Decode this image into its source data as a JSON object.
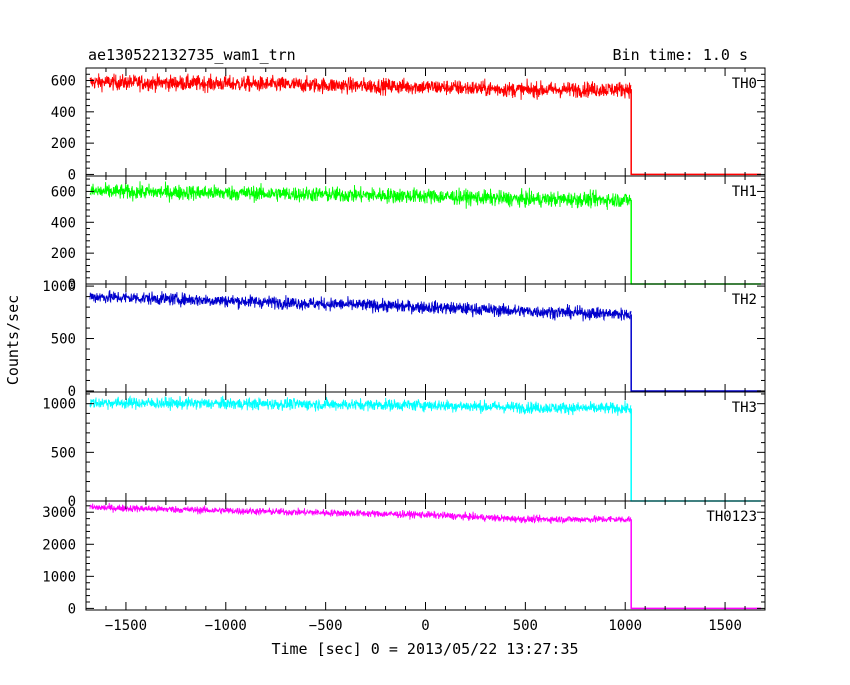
{
  "chart_data": {
    "type": "line",
    "title": "ae130522132735_wam1_trn",
    "subtitle": "Bin time: 1.0 s",
    "xlabel": "Time [sec] 0 = 2013/05/22 13:27:35",
    "ylabel": "Counts/sec",
    "xlim": [
      -1700,
      1700
    ],
    "x_ticks": [
      -1500,
      -1000,
      -500,
      0,
      500,
      1000,
      1500
    ],
    "x_tick_labels": [
      "−1500",
      "−1000",
      "−500",
      "0",
      "500",
      "1000",
      "1500"
    ],
    "data_start": -1680,
    "data_end": 1030,
    "noise_note": "",
    "panels": [
      {
        "name": "TH0",
        "color": "#ff0000",
        "ylim": [
          -10,
          680
        ],
        "y_ticks": [
          0,
          200,
          400,
          600
        ],
        "y_tick_labels": [
          "0",
          "200",
          "400",
          "600"
        ],
        "trend_x": [
          -1680,
          -1000,
          0,
          500,
          1030
        ],
        "trend_y": [
          590,
          580,
          560,
          540,
          545
        ],
        "noise": 25
      },
      {
        "name": "TH1",
        "color": "#00ff00",
        "ylim": [
          0,
          700
        ],
        "y_ticks": [
          0,
          200,
          400,
          600
        ],
        "y_tick_labels": [
          "0",
          "200",
          "400",
          "600"
        ],
        "trend_x": [
          -1680,
          -1000,
          0,
          500,
          1030
        ],
        "trend_y": [
          600,
          590,
          570,
          550,
          545
        ],
        "noise": 25
      },
      {
        "name": "TH2",
        "color": "#0000cd",
        "ylim": [
          -10,
          1020
        ],
        "y_ticks": [
          0,
          500,
          1000
        ],
        "y_tick_labels": [
          "0",
          "500",
          "1000"
        ],
        "trend_x": [
          -1680,
          -1000,
          0,
          500,
          1030
        ],
        "trend_y": [
          900,
          860,
          800,
          760,
          730
        ],
        "noise": 30
      },
      {
        "name": "TH3",
        "color": "#00ffff",
        "ylim": [
          0,
          1120
        ],
        "y_ticks": [
          0,
          500,
          1000
        ],
        "y_tick_labels": [
          "0",
          "500",
          "1000"
        ],
        "trend_x": [
          -1680,
          -1000,
          0,
          500,
          1030
        ],
        "trend_y": [
          1010,
          1000,
          985,
          960,
          950
        ],
        "noise": 30
      },
      {
        "name": "TH0123",
        "color": "#ff00ff",
        "ylim": [
          -50,
          3350
        ],
        "y_ticks": [
          0,
          1000,
          2000,
          3000
        ],
        "y_tick_labels": [
          "0",
          "1000",
          "2000",
          "3000"
        ],
        "trend_x": [
          -1680,
          -1000,
          0,
          500,
          1030
        ],
        "trend_y": [
          3150,
          3050,
          2920,
          2780,
          2780
        ],
        "noise": 55
      }
    ]
  }
}
